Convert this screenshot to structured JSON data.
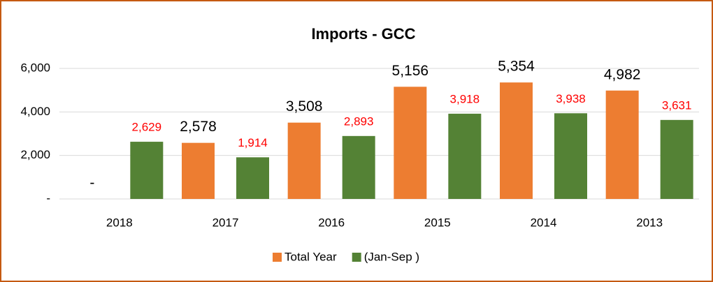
{
  "chart_data": {
    "type": "bar",
    "title": "Imports  - GCC",
    "categories": [
      "2018",
      "2017",
      "2016",
      "2015",
      "2014",
      "2013"
    ],
    "series": [
      {
        "name": "Total Year",
        "color": "#ed7d31",
        "label_color": "#000000",
        "values": [
          0,
          2578,
          3508,
          5156,
          5354,
          4982
        ],
        "value_labels": [
          "-",
          "2,578",
          "3,508",
          "5,156",
          "5,354",
          "4,982"
        ]
      },
      {
        "name": "(Jan-Sep )",
        "color": "#548235",
        "label_color": "#ff0000",
        "values": [
          2629,
          1914,
          2893,
          3918,
          3938,
          3631
        ],
        "value_labels": [
          "2,629",
          "1,914",
          "2,893",
          "3,918",
          "3,938",
          "3,631"
        ]
      }
    ],
    "ylim": [
      0,
      6000
    ],
    "yticks": [
      {
        "value": 0,
        "label": "-"
      },
      {
        "value": 2000,
        "label": "2,000"
      },
      {
        "value": 4000,
        "label": "4,000"
      },
      {
        "value": 6000,
        "label": "6,000"
      }
    ],
    "grid": true,
    "legend": "bottom"
  }
}
